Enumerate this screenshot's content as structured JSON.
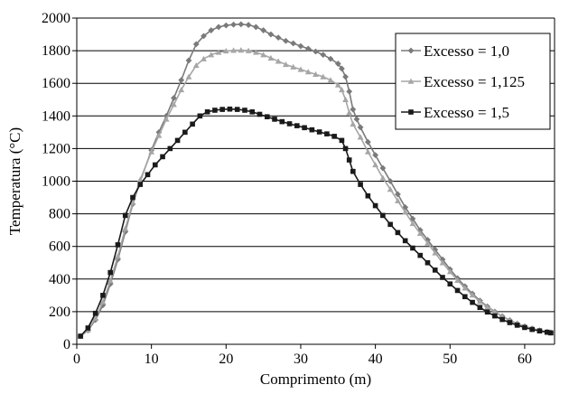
{
  "chart_data": {
    "type": "line",
    "title": "",
    "xlabel": "Comprimento (m)",
    "ylabel": "Temperatura (°C)",
    "xlim": [
      0,
      64
    ],
    "ylim": [
      0,
      2000
    ],
    "xticks": [
      0,
      10,
      20,
      30,
      40,
      50,
      60
    ],
    "yticks": [
      0,
      200,
      400,
      600,
      800,
      1000,
      1200,
      1400,
      1600,
      1800,
      2000
    ],
    "xtick_labels": [
      "0",
      "10",
      "20",
      "30",
      "40",
      "50",
      "60"
    ],
    "ytick_labels": [
      "0",
      "200",
      "400",
      "600",
      "800",
      "1000",
      "1200",
      "1400",
      "1600",
      "1800",
      "2000"
    ],
    "grid": "horizontal",
    "legend_position": "top-right",
    "series": [
      {
        "name": "Excesso = 1,0",
        "color": "#7a7a7a",
        "marker": "diamond",
        "points": [
          [
            0.5,
            50
          ],
          [
            1.5,
            85
          ],
          [
            2.5,
            150
          ],
          [
            3.5,
            240
          ],
          [
            4.5,
            370
          ],
          [
            5.5,
            520
          ],
          [
            6.5,
            690
          ],
          [
            7.5,
            860
          ],
          [
            8.5,
            1000
          ],
          [
            10,
            1190
          ],
          [
            11,
            1300
          ],
          [
            12,
            1400
          ],
          [
            13,
            1510
          ],
          [
            14,
            1620
          ],
          [
            15,
            1740
          ],
          [
            16,
            1840
          ],
          [
            17,
            1890
          ],
          [
            18,
            1925
          ],
          [
            19,
            1945
          ],
          [
            20,
            1955
          ],
          [
            21,
            1960
          ],
          [
            22,
            1962
          ],
          [
            23,
            1958
          ],
          [
            24,
            1945
          ],
          [
            25,
            1925
          ],
          [
            26,
            1900
          ],
          [
            27,
            1880
          ],
          [
            28,
            1860
          ],
          [
            29,
            1845
          ],
          [
            30,
            1828
          ],
          [
            31,
            1812
          ],
          [
            32,
            1795
          ],
          [
            33,
            1775
          ],
          [
            34,
            1750
          ],
          [
            35,
            1720
          ],
          [
            35.5,
            1690
          ],
          [
            36,
            1640
          ],
          [
            36.5,
            1550
          ],
          [
            37,
            1440
          ],
          [
            37.5,
            1380
          ],
          [
            38,
            1330
          ],
          [
            39,
            1240
          ],
          [
            40,
            1160
          ],
          [
            41,
            1080
          ],
          [
            42,
            1000
          ],
          [
            43,
            920
          ],
          [
            44,
            840
          ],
          [
            45,
            770
          ],
          [
            46,
            700
          ],
          [
            47,
            640
          ],
          [
            48,
            580
          ],
          [
            49,
            520
          ],
          [
            50,
            460
          ],
          [
            51,
            405
          ],
          [
            52,
            355
          ],
          [
            53,
            310
          ],
          [
            54,
            268
          ],
          [
            55,
            232
          ],
          [
            56,
            200
          ],
          [
            57,
            172
          ],
          [
            58,
            148
          ],
          [
            59,
            127
          ],
          [
            60,
            110
          ],
          [
            61,
            96
          ],
          [
            62,
            85
          ],
          [
            63,
            76
          ],
          [
            63.5,
            72
          ]
        ]
      },
      {
        "name": "Excesso = 1,125",
        "color": "#a6a6a6",
        "marker": "triangle",
        "points": [
          [
            0.5,
            50
          ],
          [
            1.5,
            88
          ],
          [
            2.5,
            160
          ],
          [
            3.5,
            260
          ],
          [
            4.5,
            390
          ],
          [
            5.5,
            540
          ],
          [
            6.5,
            710
          ],
          [
            7.5,
            870
          ],
          [
            8.5,
            1010
          ],
          [
            10,
            1180
          ],
          [
            11,
            1280
          ],
          [
            12,
            1380
          ],
          [
            13,
            1470
          ],
          [
            14,
            1560
          ],
          [
            15,
            1640
          ],
          [
            16,
            1710
          ],
          [
            17,
            1750
          ],
          [
            18,
            1775
          ],
          [
            19,
            1790
          ],
          [
            20,
            1798
          ],
          [
            21,
            1802
          ],
          [
            22,
            1803
          ],
          [
            23,
            1800
          ],
          [
            24,
            1790
          ],
          [
            25,
            1775
          ],
          [
            26,
            1755
          ],
          [
            27,
            1735
          ],
          [
            28,
            1715
          ],
          [
            29,
            1700
          ],
          [
            30,
            1685
          ],
          [
            31,
            1670
          ],
          [
            32,
            1655
          ],
          [
            33,
            1640
          ],
          [
            34,
            1620
          ],
          [
            35,
            1590
          ],
          [
            35.5,
            1560
          ],
          [
            36,
            1500
          ],
          [
            36.5,
            1420
          ],
          [
            37,
            1350
          ],
          [
            38,
            1270
          ],
          [
            39,
            1180
          ],
          [
            40,
            1100
          ],
          [
            41,
            1020
          ],
          [
            42,
            950
          ],
          [
            43,
            880
          ],
          [
            44,
            810
          ],
          [
            45,
            740
          ],
          [
            46,
            680
          ],
          [
            47,
            620
          ],
          [
            48,
            560
          ],
          [
            49,
            500
          ],
          [
            50,
            445
          ],
          [
            51,
            392
          ],
          [
            52,
            345
          ],
          [
            53,
            302
          ],
          [
            54,
            262
          ],
          [
            55,
            228
          ],
          [
            56,
            198
          ],
          [
            57,
            170
          ],
          [
            58,
            146
          ],
          [
            59,
            126
          ],
          [
            60,
            109
          ],
          [
            61,
            95
          ],
          [
            62,
            84
          ],
          [
            63,
            75
          ],
          [
            63.5,
            71
          ]
        ]
      },
      {
        "name": "Excesso = 1,5",
        "color": "#1a1a1a",
        "marker": "square",
        "points": [
          [
            0.5,
            50
          ],
          [
            1.5,
            100
          ],
          [
            2.5,
            190
          ],
          [
            3.5,
            300
          ],
          [
            4.5,
            440
          ],
          [
            5.5,
            610
          ],
          [
            6.5,
            790
          ],
          [
            7.5,
            900
          ],
          [
            8.5,
            980
          ],
          [
            9.5,
            1040
          ],
          [
            10.5,
            1100
          ],
          [
            11.5,
            1150
          ],
          [
            12.5,
            1200
          ],
          [
            13.5,
            1250
          ],
          [
            14.5,
            1300
          ],
          [
            15.5,
            1350
          ],
          [
            16.5,
            1400
          ],
          [
            17.5,
            1425
          ],
          [
            18.5,
            1435
          ],
          [
            19.5,
            1440
          ],
          [
            20.5,
            1442
          ],
          [
            21.5,
            1440
          ],
          [
            22.5,
            1435
          ],
          [
            23.5,
            1425
          ],
          [
            24.5,
            1410
          ],
          [
            25.5,
            1395
          ],
          [
            26.5,
            1380
          ],
          [
            27.5,
            1365
          ],
          [
            28.5,
            1352
          ],
          [
            29.5,
            1340
          ],
          [
            30.5,
            1328
          ],
          [
            31.5,
            1315
          ],
          [
            32.5,
            1302
          ],
          [
            33.5,
            1290
          ],
          [
            34.5,
            1275
          ],
          [
            35.5,
            1250
          ],
          [
            36,
            1200
          ],
          [
            36.5,
            1130
          ],
          [
            37,
            1060
          ],
          [
            38,
            980
          ],
          [
            39,
            910
          ],
          [
            40,
            850
          ],
          [
            41,
            790
          ],
          [
            42,
            735
          ],
          [
            43,
            685
          ],
          [
            44,
            635
          ],
          [
            45,
            590
          ],
          [
            46,
            545
          ],
          [
            47,
            500
          ],
          [
            48,
            455
          ],
          [
            49,
            410
          ],
          [
            50,
            370
          ],
          [
            51,
            330
          ],
          [
            52,
            292
          ],
          [
            53,
            257
          ],
          [
            54,
            226
          ],
          [
            55,
            198
          ],
          [
            56,
            174
          ],
          [
            57,
            152
          ],
          [
            58,
            133
          ],
          [
            59,
            117
          ],
          [
            60,
            103
          ],
          [
            61,
            91
          ],
          [
            62,
            82
          ],
          [
            63,
            74
          ],
          [
            63.5,
            70
          ]
        ]
      }
    ]
  }
}
